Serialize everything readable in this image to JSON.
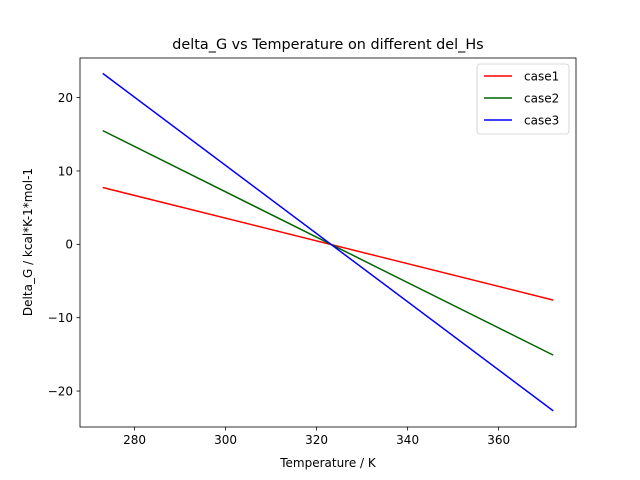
{
  "chart_data": {
    "type": "line",
    "title": "delta_G vs Temperature on different del_Hs",
    "xlabel": "Temperature / K",
    "ylabel": "Delta_G / kcal*K-1*mol-1",
    "xlim": [
      268,
      377
    ],
    "ylim": [
      -24.9,
      25.4
    ],
    "xticks": [
      280,
      300,
      320,
      340,
      360
    ],
    "yticks": [
      -20,
      -10,
      0,
      10,
      20
    ],
    "xtick_labels": [
      "280",
      "300",
      "320",
      "340",
      "360"
    ],
    "ytick_labels": [
      "−20",
      "−10",
      "0",
      "10",
      "20"
    ],
    "grid": false,
    "legend_position": "top-right",
    "series": [
      {
        "name": "case1",
        "color": "#ff0000",
        "x": [
          273,
          372
        ],
        "y": [
          7.75,
          -7.6
        ]
      },
      {
        "name": "case2",
        "color": "#006400",
        "x": [
          273,
          372
        ],
        "y": [
          15.5,
          -15.1
        ]
      },
      {
        "name": "case3",
        "color": "#0000ff",
        "x": [
          273,
          372
        ],
        "y": [
          23.3,
          -22.7
        ]
      }
    ]
  }
}
